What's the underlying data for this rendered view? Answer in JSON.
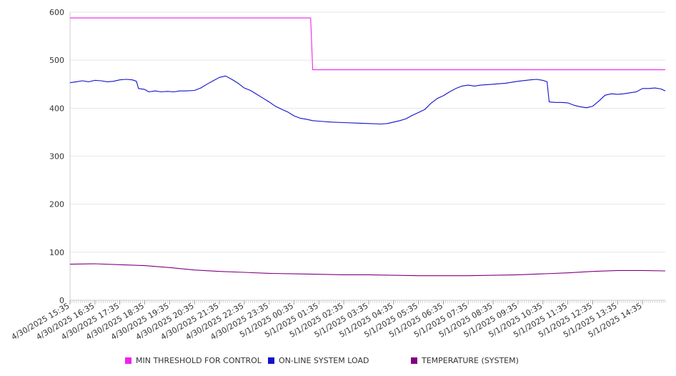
{
  "chart_data": {
    "type": "line",
    "title": "",
    "xlabel": "",
    "ylabel": "",
    "ylim": [
      0,
      600
    ],
    "yticks": [
      0,
      100,
      200,
      300,
      400,
      500,
      600
    ],
    "grid": true,
    "legend_position": "bottom",
    "x_tick_labels": [
      "4/30/2025 15:35",
      "4/30/2025 16:35",
      "4/30/2025 17:35",
      "4/30/2025 18:35",
      "4/30/2025 19:35",
      "4/30/2025 20:35",
      "4/30/2025 21:35",
      "4/30/2025 22:35",
      "4/30/2025 23:35",
      "5/1/2025 00:35",
      "5/1/2025 01:35",
      "5/1/2025 02:35",
      "5/1/2025 03:35",
      "5/1/2025 04:35",
      "5/1/2025 05:35",
      "5/1/2025 06:35",
      "5/1/2025 07:35",
      "5/1/2025 08:35",
      "5/1/2025 09:35",
      "5/1/2025 10:35",
      "5/1/2025 11:35",
      "5/1/2025 12:35",
      "5/1/2025 13:35",
      "5/1/2025 14:35"
    ],
    "x_range": [
      "4/30/2025 15:35",
      "5/1/2025 15:30"
    ],
    "series": [
      {
        "name": "MIN THRESHOLD FOR CONTROL",
        "color": "#ee22ee",
        "points": [
          [
            "4/30/2025 15:35",
            588
          ],
          [
            "5/1/2025 01:15",
            588
          ],
          [
            "5/1/2025 01:20",
            480
          ],
          [
            "5/1/2025 15:30",
            480
          ]
        ]
      },
      {
        "name": "ON-LINE SYSTEM LOAD",
        "color": "#1111cc",
        "points": [
          [
            "4/30/2025 15:35",
            453
          ],
          [
            "4/30/2025 15:50",
            455
          ],
          [
            "4/30/2025 16:05",
            457
          ],
          [
            "4/30/2025 16:20",
            455
          ],
          [
            "4/30/2025 16:35",
            458
          ],
          [
            "4/30/2025 16:50",
            457
          ],
          [
            "4/30/2025 17:05",
            455
          ],
          [
            "4/30/2025 17:20",
            456
          ],
          [
            "4/30/2025 17:35",
            459
          ],
          [
            "4/30/2025 17:50",
            460
          ],
          [
            "4/30/2025 18:05",
            459
          ],
          [
            "4/30/2025 18:15",
            456
          ],
          [
            "4/30/2025 18:20",
            441
          ],
          [
            "4/30/2025 18:35",
            439
          ],
          [
            "4/30/2025 18:45",
            434
          ],
          [
            "4/30/2025 19:00",
            436
          ],
          [
            "4/30/2025 19:15",
            434
          ],
          [
            "4/30/2025 19:30",
            435
          ],
          [
            "4/30/2025 19:45",
            434
          ],
          [
            "4/30/2025 20:00",
            436
          ],
          [
            "4/30/2025 20:15",
            436
          ],
          [
            "4/30/2025 20:35",
            437
          ],
          [
            "4/30/2025 20:50",
            442
          ],
          [
            "4/30/2025 21:05",
            450
          ],
          [
            "4/30/2025 21:20",
            457
          ],
          [
            "4/30/2025 21:35",
            464
          ],
          [
            "4/30/2025 21:50",
            467
          ],
          [
            "4/30/2025 22:05",
            460
          ],
          [
            "4/30/2025 22:20",
            452
          ],
          [
            "4/30/2025 22:35",
            442
          ],
          [
            "4/30/2025 22:50",
            437
          ],
          [
            "4/30/2025 23:05",
            429
          ],
          [
            "4/30/2025 23:20",
            421
          ],
          [
            "4/30/2025 23:35",
            413
          ],
          [
            "4/30/2025 23:50",
            404
          ],
          [
            "5/1/2025 00:05",
            398
          ],
          [
            "5/1/2025 00:20",
            392
          ],
          [
            "5/1/2025 00:35",
            384
          ],
          [
            "5/1/2025 00:50",
            379
          ],
          [
            "5/1/2025 01:05",
            377
          ],
          [
            "5/1/2025 01:20",
            374
          ],
          [
            "5/1/2025 01:35",
            373
          ],
          [
            "5/1/2025 02:05",
            371
          ],
          [
            "5/1/2025 02:35",
            370
          ],
          [
            "5/1/2025 03:05",
            369
          ],
          [
            "5/1/2025 03:35",
            368
          ],
          [
            "5/1/2025 04:05",
            367
          ],
          [
            "5/1/2025 04:20",
            368
          ],
          [
            "5/1/2025 04:35",
            371
          ],
          [
            "5/1/2025 04:50",
            374
          ],
          [
            "5/1/2025 05:05",
            378
          ],
          [
            "5/1/2025 05:20",
            385
          ],
          [
            "5/1/2025 05:35",
            391
          ],
          [
            "5/1/2025 05:50",
            397
          ],
          [
            "5/1/2025 06:05",
            410
          ],
          [
            "5/1/2025 06:20",
            420
          ],
          [
            "5/1/2025 06:35",
            426
          ],
          [
            "5/1/2025 06:50",
            434
          ],
          [
            "5/1/2025 07:05",
            441
          ],
          [
            "5/1/2025 07:20",
            446
          ],
          [
            "5/1/2025 07:35",
            448
          ],
          [
            "5/1/2025 07:50",
            446
          ],
          [
            "5/1/2025 08:05",
            448
          ],
          [
            "5/1/2025 08:35",
            450
          ],
          [
            "5/1/2025 09:05",
            452
          ],
          [
            "5/1/2025 09:35",
            456
          ],
          [
            "5/1/2025 10:05",
            459
          ],
          [
            "5/1/2025 10:20",
            460
          ],
          [
            "5/1/2025 10:35",
            458
          ],
          [
            "5/1/2025 10:45",
            455
          ],
          [
            "5/1/2025 10:50",
            413
          ],
          [
            "5/1/2025 11:05",
            412
          ],
          [
            "5/1/2025 11:20",
            412
          ],
          [
            "5/1/2025 11:35",
            411
          ],
          [
            "5/1/2025 11:50",
            406
          ],
          [
            "5/1/2025 12:05",
            403
          ],
          [
            "5/1/2025 12:20",
            401
          ],
          [
            "5/1/2025 12:35",
            404
          ],
          [
            "5/1/2025 12:50",
            415
          ],
          [
            "5/1/2025 13:05",
            427
          ],
          [
            "5/1/2025 13:20",
            430
          ],
          [
            "5/1/2025 13:35",
            429
          ],
          [
            "5/1/2025 13:50",
            430
          ],
          [
            "5/1/2025 14:05",
            432
          ],
          [
            "5/1/2025 14:20",
            434
          ],
          [
            "5/1/2025 14:35",
            441
          ],
          [
            "5/1/2025 14:50",
            441
          ],
          [
            "5/1/2025 15:05",
            442
          ],
          [
            "5/1/2025 15:20",
            440
          ],
          [
            "5/1/2025 15:30",
            436
          ]
        ]
      },
      {
        "name": "TEMPERATURE (SYSTEM)",
        "color": "#800080",
        "points": [
          [
            "4/30/2025 15:35",
            75
          ],
          [
            "4/30/2025 16:35",
            76
          ],
          [
            "4/30/2025 17:35",
            74
          ],
          [
            "4/30/2025 18:35",
            72
          ],
          [
            "4/30/2025 19:35",
            68
          ],
          [
            "4/30/2025 20:35",
            63
          ],
          [
            "4/30/2025 21:35",
            60
          ],
          [
            "4/30/2025 22:35",
            58
          ],
          [
            "4/30/2025 23:35",
            56
          ],
          [
            "5/1/2025 00:35",
            55
          ],
          [
            "5/1/2025 01:35",
            54
          ],
          [
            "5/1/2025 02:35",
            53
          ],
          [
            "5/1/2025 03:35",
            53
          ],
          [
            "5/1/2025 04:35",
            52
          ],
          [
            "5/1/2025 05:35",
            51
          ],
          [
            "5/1/2025 06:35",
            51
          ],
          [
            "5/1/2025 07:35",
            51
          ],
          [
            "5/1/2025 08:35",
            52
          ],
          [
            "5/1/2025 09:35",
            53
          ],
          [
            "5/1/2025 10:35",
            55
          ],
          [
            "5/1/2025 11:35",
            57
          ],
          [
            "5/1/2025 12:35",
            60
          ],
          [
            "5/1/2025 13:35",
            62
          ],
          [
            "5/1/2025 14:35",
            62
          ],
          [
            "5/1/2025 15:30",
            61
          ]
        ]
      }
    ]
  }
}
